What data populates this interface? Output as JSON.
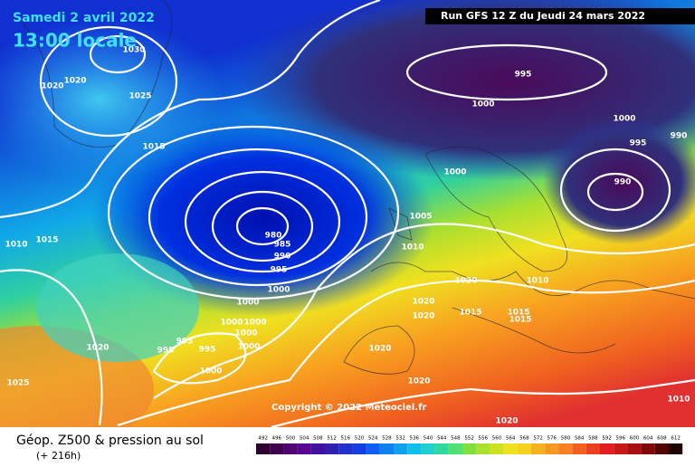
{
  "header": {
    "date": "Samedi 2 avril 2022",
    "time": "13:00 locale",
    "run": "Run GFS 12 Z du Jeudi 24 mars 2022"
  },
  "isobar_labels": [
    "1030",
    "1020",
    "1020",
    "1025",
    "1015",
    "1010",
    "1015",
    "980",
    "985",
    "990",
    "995",
    "1000",
    "1000",
    "1000",
    "1000",
    "1000",
    "995",
    "995",
    "995",
    "1000",
    "1000",
    "1020",
    "1025",
    "995",
    "1000",
    "1000",
    "995",
    "990",
    "990",
    "1000",
    "1005",
    "1010",
    "1020",
    "1010",
    "1020",
    "1020",
    "1015",
    "1015",
    "1015",
    "1020",
    "1020",
    "1020",
    "1010"
  ],
  "copyright": "Copyright © 2022 Meteociel.fr",
  "legend": {
    "title": "Géop. Z500 & pression au sol",
    "subtitle": "(+ 216h)",
    "scale": [
      492,
      496,
      500,
      504,
      508,
      512,
      516,
      520,
      524,
      528,
      532,
      536,
      540,
      544,
      548,
      552,
      556,
      560,
      564,
      568,
      572,
      576,
      580,
      584,
      588,
      592,
      596,
      600,
      604,
      608,
      612
    ]
  }
}
